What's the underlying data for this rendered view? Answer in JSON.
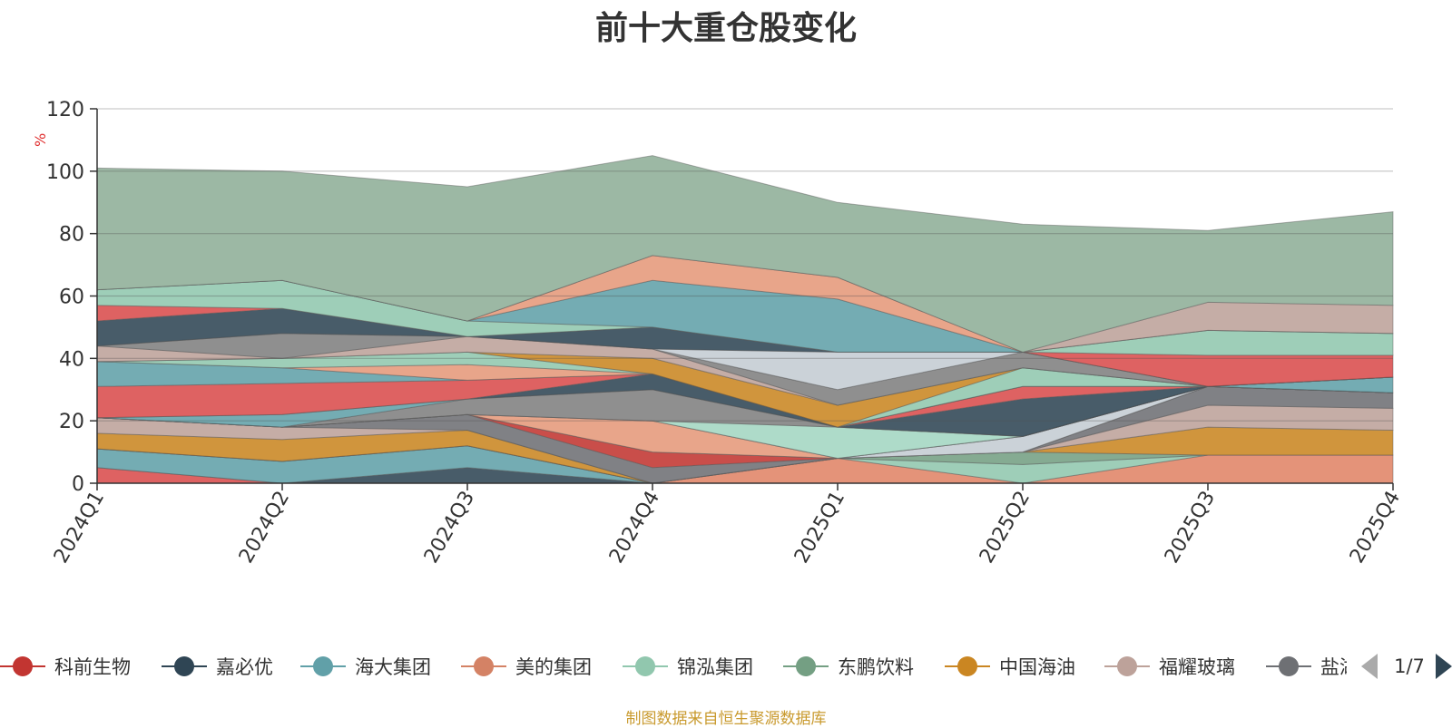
{
  "chart_data": {
    "type": "area",
    "title": "前十大重仓股变化",
    "ylabel": "%",
    "xlabel": "",
    "ylim": [
      0,
      120
    ],
    "yticks": [
      0,
      20,
      40,
      60,
      80,
      100,
      120
    ],
    "categories": [
      "2024Q1",
      "2024Q2",
      "2024Q3",
      "2024Q4",
      "2025Q1",
      "2025Q2",
      "2025Q3",
      "2025Q4"
    ],
    "grid": true,
    "legend_position": "bottom",
    "stacked": true,
    "series": [
      {
        "name": "科前生物",
        "color": "#d94c4c",
        "values": [
          5,
          0,
          0,
          0,
          0,
          0,
          0,
          0
        ]
      },
      {
        "name": "嘉必优",
        "color": "#2f4554",
        "values": [
          0,
          0,
          5,
          0,
          0,
          0,
          0,
          0
        ]
      },
      {
        "name": "海大集团",
        "color": "#61a0a8",
        "values": [
          6,
          7,
          7,
          0,
          0,
          0,
          0,
          0
        ]
      },
      {
        "name": "美的集团",
        "color": "#e08466",
        "values": [
          0,
          0,
          0,
          0,
          8,
          0,
          9,
          9
        ]
      },
      {
        "name": "锦泓集团",
        "color": "#91c7ae",
        "values": [
          0,
          0,
          0,
          0,
          0,
          6,
          0,
          0
        ]
      },
      {
        "name": "东鹏饮料",
        "color": "#749f83",
        "values": [
          0,
          0,
          0,
          0,
          0,
          4,
          0,
          0
        ]
      },
      {
        "name": "中国海油",
        "color": "#ca8622",
        "values": [
          5,
          7,
          5,
          0,
          0,
          0,
          9,
          8
        ]
      },
      {
        "name": "福耀玻璃",
        "color": "#bda29a",
        "values": [
          5,
          4,
          0,
          0,
          0,
          0,
          7,
          7
        ]
      },
      {
        "name": "盐湖股份",
        "color": "#6e7074",
        "values": [
          0,
          0,
          5,
          5,
          0,
          0,
          6,
          5
        ]
      },
      {
        "name": "",
        "color": "#c23531",
        "values": [
          0,
          0,
          0,
          5,
          0,
          0,
          0,
          0
        ]
      },
      {
        "name": "",
        "color": "#c4ccd3",
        "values": [
          0,
          0,
          0,
          0,
          0,
          5,
          0,
          0
        ]
      },
      {
        "name": "",
        "color": "#e5987a",
        "values": [
          0,
          0,
          0,
          10,
          0,
          0,
          0,
          0
        ]
      },
      {
        "name": "",
        "color": "#d48265",
        "values": [
          0,
          0,
          0,
          0,
          0,
          0,
          0,
          0
        ]
      },
      {
        "name": "",
        "color": "#a3d6c2",
        "values": [
          0,
          0,
          0,
          0,
          10,
          0,
          0,
          0
        ]
      },
      {
        "name": "",
        "color": "#7f7f7f",
        "values": [
          0,
          0,
          5,
          10,
          0,
          0,
          0,
          0
        ]
      },
      {
        "name": "",
        "color": "#61a0a8",
        "values": [
          0,
          4,
          0,
          0,
          0,
          0,
          0,
          0
        ]
      },
      {
        "name": "",
        "color": "#2f4554",
        "values": [
          0,
          0,
          0,
          5,
          0,
          12,
          0,
          0
        ]
      },
      {
        "name": "",
        "color": "#d94c4c",
        "values": [
          10,
          10,
          6,
          0,
          0,
          4,
          0,
          0
        ]
      },
      {
        "name": "",
        "color": "#61a0a8",
        "values": [
          8,
          5,
          0,
          0,
          0,
          0,
          0,
          5
        ]
      },
      {
        "name": "",
        "color": "#e5987a",
        "values": [
          0,
          0,
          5,
          0,
          0,
          0,
          0,
          0
        ]
      },
      {
        "name": "",
        "color": "#91c7ae",
        "values": [
          0,
          3,
          4,
          0,
          0,
          6,
          0,
          0
        ]
      },
      {
        "name": "",
        "color": "#ca8622",
        "values": [
          0,
          0,
          0,
          5,
          7,
          0,
          0,
          0
        ]
      },
      {
        "name": "",
        "color": "#bda29a",
        "values": [
          5,
          0,
          5,
          3,
          0,
          0,
          0,
          0
        ]
      },
      {
        "name": "",
        "color": "#7f7f7f",
        "values": [
          0,
          8,
          0,
          0,
          5,
          5,
          0,
          0
        ]
      },
      {
        "name": "",
        "color": "#c4ccd3",
        "values": [
          0,
          0,
          0,
          0,
          12,
          0,
          0,
          0
        ]
      },
      {
        "name": "",
        "color": "#2f4554",
        "values": [
          8,
          8,
          0,
          7,
          0,
          0,
          0,
          0
        ]
      },
      {
        "name": "",
        "color": "#d94c4c",
        "values": [
          5,
          0,
          0,
          0,
          0,
          0,
          10,
          7
        ]
      },
      {
        "name": "",
        "color": "#91c7ae",
        "values": [
          5,
          9,
          5,
          0,
          0,
          0,
          8,
          7
        ]
      },
      {
        "name": "",
        "color": "#61a0a8",
        "values": [
          0,
          0,
          0,
          15,
          17,
          0,
          0,
          0
        ]
      },
      {
        "name": "",
        "color": "#e5987a",
        "values": [
          0,
          0,
          0,
          8,
          7,
          0,
          0,
          0
        ]
      },
      {
        "name": "",
        "color": "#bda29a",
        "values": [
          0,
          0,
          0,
          0,
          0,
          0,
          9,
          9
        ]
      },
      {
        "name": "",
        "color": "#9cb8a4",
        "values": [
          39,
          35,
          43,
          32,
          24,
          41,
          23,
          30
        ]
      }
    ]
  },
  "legend": {
    "items": [
      "科前生物",
      "嘉必优",
      "海大集团",
      "美的集团",
      "锦泓集团",
      "东鹏饮料",
      "中国海油",
      "福耀玻璃",
      "盐湖股份"
    ],
    "colors": [
      "#c23531",
      "#2f4554",
      "#61a0a8",
      "#d48265",
      "#91c7ae",
      "#749f83",
      "#ca8622",
      "#bda29a",
      "#6e7074"
    ],
    "page": "1/7"
  },
  "footer": {
    "source": "制图数据来自恒生聚源数据库"
  }
}
